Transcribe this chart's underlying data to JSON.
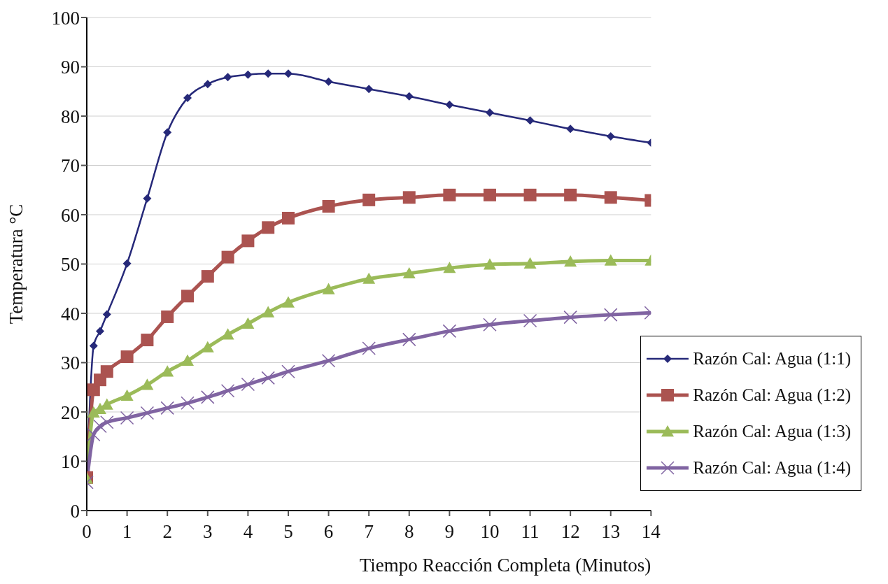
{
  "chart_data": {
    "type": "line",
    "xlabel": "Tiempo Reacción Completa (Minutos)",
    "ylabel": "Temperatura °C",
    "x": [
      0,
      0.17,
      0.33,
      0.5,
      1,
      1.5,
      2,
      2.5,
      3,
      3.5,
      4,
      4.5,
      5,
      6,
      7,
      8,
      9,
      10,
      11,
      12,
      13,
      14
    ],
    "xlim": [
      0,
      14
    ],
    "xticks": [
      0,
      1,
      2,
      3,
      4,
      5,
      6,
      7,
      8,
      9,
      10,
      11,
      12,
      13,
      14
    ],
    "ylim": [
      0,
      100
    ],
    "yticks": [
      0,
      10,
      20,
      30,
      40,
      50,
      60,
      70,
      80,
      90,
      100
    ],
    "grid": "y",
    "legend": "bottom right",
    "series": [
      {
        "name": "Razón Cal: Agua (1:1)",
        "color": "#262979",
        "marker": "diamond",
        "values": [
          6.3,
          33.4,
          36.4,
          39.8,
          50.1,
          63.3,
          76.7,
          83.7,
          86.5,
          87.9,
          88.4,
          88.6,
          88.6,
          87.0,
          85.5,
          84.0,
          82.3,
          80.7,
          79.1,
          77.4,
          75.9,
          74.6
        ]
      },
      {
        "name": "Razón Cal: Agua (1:2)",
        "color": "#ab5350",
        "marker": "square",
        "values": [
          6.7,
          24.5,
          26.5,
          28.2,
          31.2,
          34.6,
          39.3,
          43.5,
          47.5,
          51.4,
          54.7,
          57.4,
          59.3,
          61.7,
          63.0,
          63.5,
          64.0,
          64.0,
          64.0,
          64.0,
          63.5,
          62.9
        ]
      },
      {
        "name": "Razón Cal: Agua (1:3)",
        "color": "#9bbb59",
        "marker": "triangle",
        "values": [
          6.5,
          19.9,
          20.6,
          21.5,
          23.3,
          25.5,
          28.2,
          30.4,
          33.1,
          35.7,
          37.9,
          40.2,
          42.2,
          44.9,
          47.0,
          48.1,
          49.2,
          49.9,
          50.1,
          50.5,
          50.7,
          50.7
        ]
      },
      {
        "name": "Razón Cal: Agua (1:4)",
        "color": "#8064a2",
        "marker": "cross",
        "values": [
          5.7,
          15.4,
          17.1,
          17.9,
          18.8,
          19.8,
          20.8,
          21.8,
          23.0,
          24.3,
          25.6,
          26.9,
          28.2,
          30.4,
          32.9,
          34.7,
          36.4,
          37.7,
          38.5,
          39.2,
          39.7,
          40.1
        ]
      }
    ]
  }
}
